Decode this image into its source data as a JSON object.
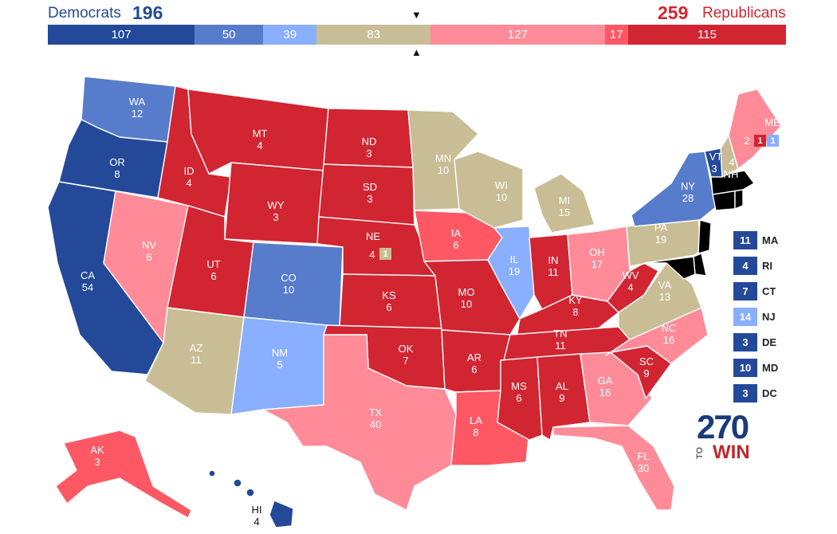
{
  "header": {
    "dem_label": "Democrats",
    "dem_total": "196",
    "rep_total": "259",
    "rep_label": "Republicans"
  },
  "bar_segments": [
    {
      "value": "107",
      "color": "#244999"
    },
    {
      "value": "50",
      "color": "#577ccc"
    },
    {
      "value": "39",
      "color": "#8aafff"
    },
    {
      "value": "83",
      "color": "#c9bd95"
    },
    {
      "value": "127",
      "color": "#ff8b98"
    },
    {
      "value": "17",
      "color": "#ff5865"
    },
    {
      "value": "115",
      "color": "#d22532"
    }
  ],
  "center_markers": {
    "top": "▼",
    "bottom": "▲"
  },
  "colors": {
    "safe_dem": "#244999",
    "likely_dem": "#577ccc",
    "lean_dem": "#8aafff",
    "tossup": "#c9bd95",
    "lean_rep": "#ff8b98",
    "likely_rep": "#ff5865",
    "safe_rep": "#d22532"
  },
  "states": {
    "WA": {
      "abbr": "WA",
      "ev": "12",
      "rating": "likely_dem"
    },
    "OR": {
      "abbr": "OR",
      "ev": "8",
      "rating": "safe_dem"
    },
    "CA": {
      "abbr": "CA",
      "ev": "54",
      "rating": "safe_dem"
    },
    "ID": {
      "abbr": "ID",
      "ev": "4",
      "rating": "safe_rep"
    },
    "NV": {
      "abbr": "NV",
      "ev": "6",
      "rating": "lean_rep"
    },
    "MT": {
      "abbr": "MT",
      "ev": "4",
      "rating": "safe_rep"
    },
    "WY": {
      "abbr": "WY",
      "ev": "3",
      "rating": "safe_rep"
    },
    "UT": {
      "abbr": "UT",
      "ev": "6",
      "rating": "safe_rep"
    },
    "CO": {
      "abbr": "CO",
      "ev": "10",
      "rating": "likely_dem"
    },
    "AZ": {
      "abbr": "AZ",
      "ev": "11",
      "rating": "tossup"
    },
    "NM": {
      "abbr": "NM",
      "ev": "5",
      "rating": "lean_dem"
    },
    "ND": {
      "abbr": "ND",
      "ev": "3",
      "rating": "safe_rep"
    },
    "SD": {
      "abbr": "SD",
      "ev": "3",
      "rating": "safe_rep"
    },
    "NE": {
      "abbr": "NE",
      "ev": "4",
      "rating": "safe_rep",
      "district": "1"
    },
    "KS": {
      "abbr": "KS",
      "ev": "6",
      "rating": "safe_rep"
    },
    "OK": {
      "abbr": "OK",
      "ev": "7",
      "rating": "safe_rep"
    },
    "TX": {
      "abbr": "TX",
      "ev": "40",
      "rating": "lean_rep"
    },
    "MN": {
      "abbr": "MN",
      "ev": "10",
      "rating": "tossup"
    },
    "IA": {
      "abbr": "IA",
      "ev": "6",
      "rating": "likely_rep"
    },
    "MO": {
      "abbr": "MO",
      "ev": "10",
      "rating": "safe_rep"
    },
    "AR": {
      "abbr": "AR",
      "ev": "6",
      "rating": "safe_rep"
    },
    "LA": {
      "abbr": "LA",
      "ev": "8",
      "rating": "likely_rep"
    },
    "WI": {
      "abbr": "WI",
      "ev": "10",
      "rating": "tossup"
    },
    "IL": {
      "abbr": "IL",
      "ev": "19",
      "rating": "lean_dem"
    },
    "MI": {
      "abbr": "MI",
      "ev": "15",
      "rating": "tossup"
    },
    "IN": {
      "abbr": "IN",
      "ev": "11",
      "rating": "safe_rep"
    },
    "OH": {
      "abbr": "OH",
      "ev": "17",
      "rating": "lean_rep"
    },
    "KY": {
      "abbr": "KY",
      "ev": "8",
      "rating": "safe_rep"
    },
    "TN": {
      "abbr": "TN",
      "ev": "11",
      "rating": "safe_rep"
    },
    "MS": {
      "abbr": "MS",
      "ev": "6",
      "rating": "safe_rep"
    },
    "AL": {
      "abbr": "AL",
      "ev": "9",
      "rating": "safe_rep"
    },
    "GA": {
      "abbr": "GA",
      "ev": "16",
      "rating": "lean_rep"
    },
    "FL": {
      "abbr": "FL",
      "ev": "30",
      "rating": "lean_rep"
    },
    "SC": {
      "abbr": "SC",
      "ev": "9",
      "rating": "safe_rep"
    },
    "NC": {
      "abbr": "NC",
      "ev": "16",
      "rating": "lean_rep"
    },
    "VA": {
      "abbr": "VA",
      "ev": "13",
      "rating": "tossup"
    },
    "WV": {
      "abbr": "WV",
      "ev": "4",
      "rating": "safe_rep"
    },
    "PA": {
      "abbr": "PA",
      "ev": "19",
      "rating": "tossup"
    },
    "NY": {
      "abbr": "NY",
      "ev": "28",
      "rating": "likely_dem"
    },
    "VT": {
      "abbr": "VT",
      "ev": "3",
      "rating": "safe_dem"
    },
    "NH": {
      "abbr": "NH",
      "ev": "4",
      "rating": "tossup"
    },
    "ME": {
      "abbr": "ME",
      "ev": "2",
      "rating": "lean_rep",
      "district1": "1",
      "district2": "1"
    },
    "AK": {
      "abbr": "AK",
      "ev": "3",
      "rating": "likely_rep"
    },
    "HI": {
      "abbr": "HI",
      "ev": "4",
      "rating": "safe_dem"
    }
  },
  "small_states": [
    {
      "ev": "11",
      "abbr": "MA",
      "color": "#244999"
    },
    {
      "ev": "4",
      "abbr": "RI",
      "color": "#244999"
    },
    {
      "ev": "7",
      "abbr": "CT",
      "color": "#244999"
    },
    {
      "ev": "14",
      "abbr": "NJ",
      "color": "#8aafff"
    },
    {
      "ev": "3",
      "abbr": "DE",
      "color": "#244999"
    },
    {
      "ev": "10",
      "abbr": "MD",
      "color": "#244999"
    },
    {
      "ev": "3",
      "abbr": "DC",
      "color": "#244999"
    }
  ],
  "logo": {
    "number": "270",
    "to": "TO",
    "win": "WIN"
  }
}
